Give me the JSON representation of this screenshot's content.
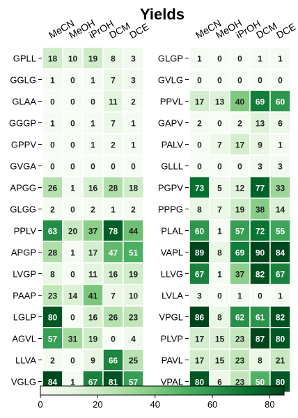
{
  "chart_data": {
    "type": "heatmap",
    "title": "Yields",
    "columns": [
      "MeCN",
      "MeOH",
      "iPrOH",
      "DCM",
      "DCE"
    ],
    "panels": [
      {
        "rows": [
          "GPLL",
          "GGLG",
          "GLAA",
          "GGGP",
          "GPPV",
          "GVGA",
          "APGG",
          "GLGG",
          "PPLV",
          "APGP",
          "LVGP",
          "PAAP",
          "LGLP",
          "AGVL",
          "LLVA",
          "VGLG"
        ],
        "values": [
          [
            18,
            10,
            19,
            8,
            3
          ],
          [
            1,
            0,
            1,
            7,
            3
          ],
          [
            0,
            0,
            0,
            11,
            2
          ],
          [
            1,
            0,
            1,
            7,
            1
          ],
          [
            0,
            0,
            1,
            2,
            1
          ],
          [
            0,
            0,
            0,
            0,
            0
          ],
          [
            26,
            1,
            16,
            28,
            18
          ],
          [
            2,
            0,
            2,
            1,
            2
          ],
          [
            63,
            20,
            37,
            78,
            44
          ],
          [
            28,
            1,
            17,
            47,
            51
          ],
          [
            8,
            0,
            11,
            16,
            19
          ],
          [
            23,
            14,
            41,
            7,
            10
          ],
          [
            80,
            0,
            16,
            26,
            23
          ],
          [
            57,
            31,
            19,
            0,
            4
          ],
          [
            2,
            0,
            9,
            66,
            25
          ],
          [
            84,
            1,
            67,
            81,
            57
          ]
        ]
      },
      {
        "rows": [
          "GLGP",
          "GVLG",
          "PPVL",
          "GAPV",
          "PALV",
          "GLLL",
          "PGPV",
          "PPPG",
          "PLAL",
          "VAPL",
          "LLVG",
          "LVLA",
          "VPGL",
          "PLVP",
          "PAVL",
          "VPAL"
        ],
        "values": [
          [
            1,
            0,
            0,
            1,
            1
          ],
          [
            0,
            0,
            0,
            0,
            0
          ],
          [
            17,
            13,
            40,
            69,
            60
          ],
          [
            2,
            0,
            2,
            13,
            6
          ],
          [
            0,
            7,
            17,
            9,
            1
          ],
          [
            0,
            0,
            0,
            3,
            3
          ],
          [
            73,
            5,
            12,
            77,
            33
          ],
          [
            8,
            7,
            19,
            38,
            14
          ],
          [
            60,
            1,
            57,
            72,
            55
          ],
          [
            89,
            8,
            69,
            90,
            84
          ],
          [
            67,
            1,
            37,
            82,
            67
          ],
          [
            3,
            0,
            1,
            0,
            1
          ],
          [
            86,
            8,
            62,
            61,
            82
          ],
          [
            17,
            15,
            23,
            87,
            80
          ],
          [
            17,
            15,
            23,
            8,
            21
          ],
          [
            80,
            6,
            23,
            50,
            80
          ]
        ]
      }
    ],
    "colorbar": {
      "min": 0,
      "max": 85,
      "ticks": [
        0,
        20,
        40,
        60,
        80
      ]
    },
    "colormap": "Greens",
    "colors": {
      "low": "#f7fcf5",
      "high": "#00441b",
      "light_text": "#ffffff",
      "dark_text": "#222222"
    }
  }
}
